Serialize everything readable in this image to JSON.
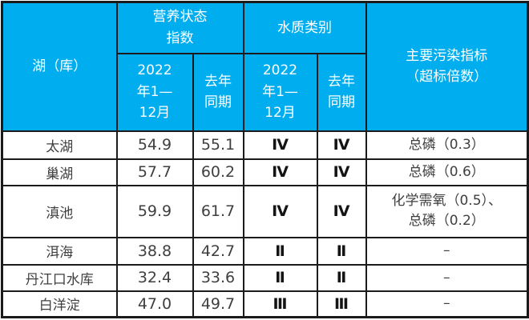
{
  "colors": {
    "header_bg": "#00AEEF",
    "header_text": "#FFFFFF",
    "body_text": "#3F3F3F",
    "water_class_text": "#141414",
    "border": "#1B1B1B"
  },
  "chart_data": {
    "type": "table",
    "title": "",
    "header": {
      "lake": "湖（库）",
      "nutrition_group": "营养状态\n指数",
      "water_group": "水质类别",
      "pollutant": "主要污染指标\n（超标倍数）",
      "period_2022": "2022\n年1—\n12月",
      "period_prev": "去年\n同期"
    },
    "rows": [
      {
        "name": "太湖",
        "ti_2022": "54.9",
        "ti_prev": "55.1",
        "wq_2022": "Ⅳ",
        "wq_prev": "Ⅳ",
        "pollutant": "总磷（0.3）"
      },
      {
        "name": "巢湖",
        "ti_2022": "57.7",
        "ti_prev": "60.2",
        "wq_2022": "Ⅳ",
        "wq_prev": "Ⅳ",
        "pollutant": "总磷（0.6）"
      },
      {
        "name": "滇池",
        "ti_2022": "59.9",
        "ti_prev": "61.7",
        "wq_2022": "Ⅳ",
        "wq_prev": "Ⅳ",
        "pollutant": "化学需氧（0.5）、\n总磷（0.2）"
      },
      {
        "name": "洱海",
        "ti_2022": "38.8",
        "ti_prev": "42.7",
        "wq_2022": "Ⅱ",
        "wq_prev": "Ⅱ",
        "pollutant": "–"
      },
      {
        "name": "丹江口水库",
        "ti_2022": "32.4",
        "ti_prev": "33.6",
        "wq_2022": "Ⅱ",
        "wq_prev": "Ⅱ",
        "pollutant": "–"
      },
      {
        "name": "白洋淀",
        "ti_2022": "47.0",
        "ti_prev": "49.7",
        "wq_2022": "Ⅲ",
        "wq_prev": "Ⅲ",
        "pollutant": "–"
      }
    ]
  }
}
